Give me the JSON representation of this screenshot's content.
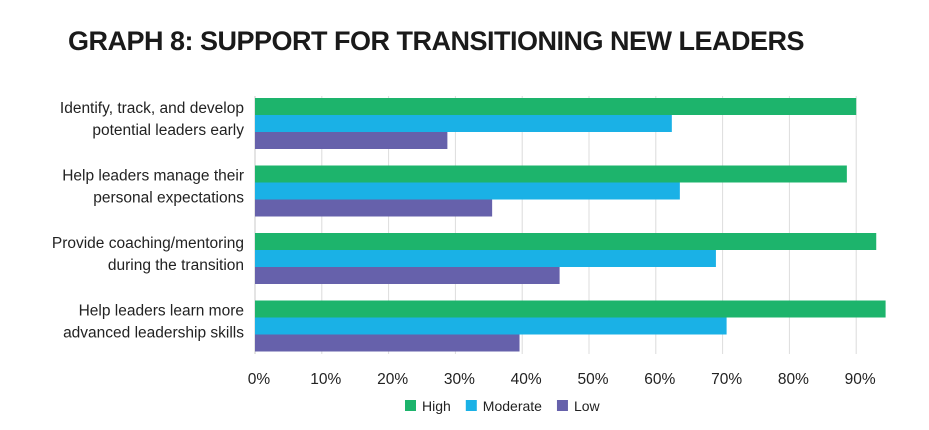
{
  "chart_data": {
    "type": "bar",
    "orientation": "horizontal",
    "title": "GRAPH 8: SUPPORT FOR TRANSITIONING NEW LEADERS",
    "categories": [
      [
        "Identify, track, and develop",
        "potential leaders early"
      ],
      [
        "Help leaders manage their",
        "personal expectations"
      ],
      [
        "Provide coaching/mentoring",
        "during the transition"
      ],
      [
        "Help leaders learn more",
        "advanced leadership skills"
      ]
    ],
    "series": [
      {
        "name": "High",
        "color": "#1db46c",
        "values": [
          90,
          88.6,
          93,
          94.4
        ]
      },
      {
        "name": "Moderate",
        "color": "#1ab1e6",
        "values": [
          62.4,
          63.6,
          69,
          70.6
        ]
      },
      {
        "name": "Low",
        "color": "#6661ab",
        "values": [
          28.8,
          35.5,
          45.6,
          39.6
        ]
      }
    ],
    "xlim": [
      0,
      95
    ],
    "xticks": [
      "0%",
      "10%",
      "20%",
      "30%",
      "40%",
      "50%",
      "60%",
      "70%",
      "80%",
      "90%"
    ],
    "grid": true,
    "legend": "bottom-center"
  }
}
